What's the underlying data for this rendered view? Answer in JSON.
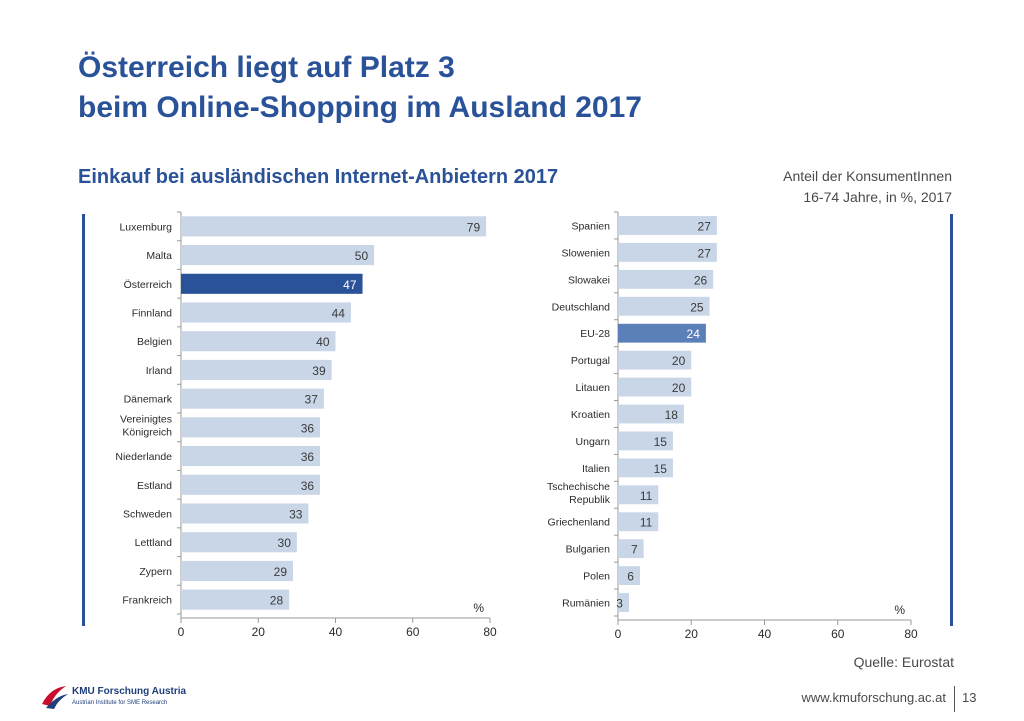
{
  "header": {
    "title_line1": "Österreich liegt auf Platz 3",
    "title_line2": "beim Online-Shopping im Ausland 2017",
    "subtitle": "Einkauf bei ausländischen Internet-Anbietern 2017",
    "note_line1": "Anteil der KonsumentInnen",
    "note_line2": "16-74 Jahre, in %, 2017"
  },
  "footer": {
    "source": "Quelle: Eurostat",
    "url": "www.kmuforschung.ac.at",
    "page": "13",
    "logo_name": "KMU Forschung Austria",
    "logo_sub": "Austrian Institute for SME Research"
  },
  "colors": {
    "bar": "#c9d6e8",
    "highlight_austria": "#2a5298",
    "highlight_eu": "#5b7fb8",
    "text": "#2b2b2b",
    "axis": "#9a9a9a",
    "title": "#2a5298"
  },
  "chart_data": [
    {
      "type": "bar",
      "orientation": "horizontal",
      "categories": [
        "Luxemburg",
        "Malta",
        "Österreich",
        "Finnland",
        "Belgien",
        "Irland",
        "Dänemark",
        "Vereinigtes Königreich",
        "Niederlande",
        "Estland",
        "Schweden",
        "Lettland",
        "Zypern",
        "Frankreich"
      ],
      "values": [
        79,
        50,
        47,
        44,
        40,
        39,
        37,
        36,
        36,
        36,
        33,
        30,
        29,
        28
      ],
      "highlight": "Österreich",
      "xlim": [
        0,
        80
      ],
      "xticks": [
        0,
        20,
        40,
        60,
        80
      ],
      "unit_label": "%",
      "data_labels": true
    },
    {
      "type": "bar",
      "orientation": "horizontal",
      "categories": [
        "Spanien",
        "Slowenien",
        "Slowakei",
        "Deutschland",
        "EU-28",
        "Portugal",
        "Litauen",
        "Kroatien",
        "Ungarn",
        "Italien",
        "Tschechische Republik",
        "Griechenland",
        "Bulgarien",
        "Polen",
        "Rumänien"
      ],
      "values": [
        27,
        27,
        26,
        25,
        24,
        20,
        20,
        18,
        15,
        15,
        11,
        11,
        7,
        6,
        3
      ],
      "highlight": "EU-28",
      "xlim": [
        0,
        80
      ],
      "xticks": [
        0,
        20,
        40,
        60,
        80
      ],
      "unit_label": "%",
      "data_labels": true
    }
  ]
}
